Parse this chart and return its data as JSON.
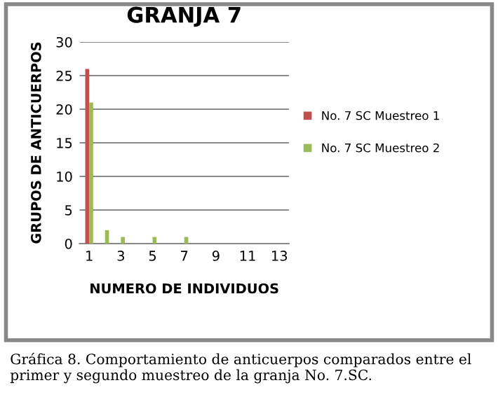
{
  "chart_data": {
    "type": "bar",
    "title": "GRANJA 7",
    "xlabel": "NUMERO DE INDIVIDUOS",
    "ylabel": "GRUPOS DE ANTICUERPOS",
    "categories": [
      "1",
      null,
      "3",
      null,
      "5",
      null,
      "7",
      null,
      "9",
      null,
      "11",
      null,
      "13"
    ],
    "series": [
      {
        "name": "No. 7 SC Muestreo 1",
        "color": "#c0504d",
        "values": [
          26,
          0,
          0,
          0,
          0,
          0,
          0,
          0,
          0,
          0,
          0,
          0,
          0
        ]
      },
      {
        "name": "No. 7 SC Muestreo 2",
        "color": "#9bbb59",
        "values": [
          21,
          2,
          1,
          0,
          1,
          0,
          1,
          0,
          0,
          0,
          0,
          0,
          0
        ]
      }
    ],
    "ylim": [
      0,
      30
    ],
    "yticks": [
      0,
      5,
      10,
      15,
      20,
      25,
      30
    ],
    "grid": "y",
    "legend": "right",
    "annotations": [
      "Gráfica 8. Comportamiento de anticuerpos comparados entre el primer y segundo muestreo de la granja No. 7.SC."
    ]
  }
}
